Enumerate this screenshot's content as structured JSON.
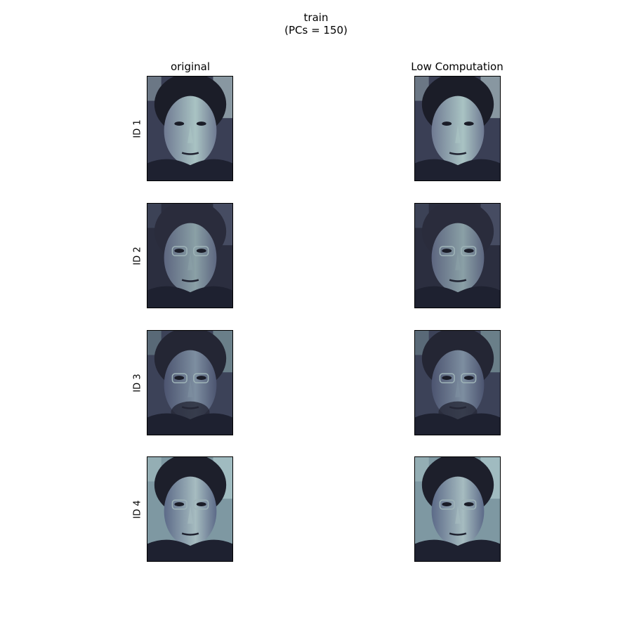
{
  "figure": {
    "title_line1": "train",
    "title_line2": "(PCs = 150)"
  },
  "columns": [
    {
      "label": "original"
    },
    {
      "label": "Low Computation"
    }
  ],
  "rows": [
    {
      "label": "ID 1",
      "variant": 1
    },
    {
      "label": "ID 2",
      "variant": 2
    },
    {
      "label": "ID 3",
      "variant": 3
    },
    {
      "label": "ID 4",
      "variant": 4
    }
  ],
  "colormap": "bone"
}
